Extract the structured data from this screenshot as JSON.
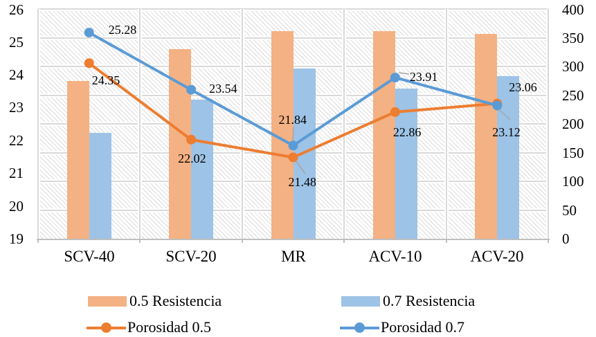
{
  "chart_data": {
    "type": "bar",
    "subtype": "combo-bar-line-dual-axis",
    "categories": [
      "SCV-40",
      "SCV-20",
      "MR",
      "ACV-10",
      "ACV-20"
    ],
    "bar_series": [
      {
        "name": "0.5 Resistencia",
        "axis": "right",
        "color": "#F4B183",
        "values": [
          275,
          330,
          362,
          361,
          357
        ]
      },
      {
        "name": "0.7 Resistencia",
        "axis": "right",
        "color": "#9DC3E6",
        "values": [
          184,
          242,
          296,
          261,
          283
        ]
      }
    ],
    "line_series": [
      {
        "name": "Porosidad 0.5",
        "axis": "left",
        "color": "#ED7D31",
        "values": [
          24.35,
          22.02,
          21.48,
          22.86,
          23.12
        ],
        "labels": [
          "24.35",
          "22.02",
          "21.48",
          "22.86",
          "23.12"
        ]
      },
      {
        "name": "Porosidad 0.7",
        "axis": "left",
        "color": "#5B9BD5",
        "values": [
          25.28,
          23.54,
          21.84,
          23.91,
          23.06
        ],
        "labels": [
          "25.28",
          "23.54",
          "21.84",
          "23.91",
          "23.06"
        ]
      }
    ],
    "left_axis": {
      "min": 19,
      "max": 26,
      "step": 1,
      "ticks": [
        "26",
        "25",
        "24",
        "23",
        "22",
        "21",
        "20",
        "19"
      ]
    },
    "right_axis": {
      "min": 0,
      "max": 400,
      "step": 50,
      "ticks": [
        "400",
        "350",
        "300",
        "250",
        "200",
        "150",
        "100",
        "50",
        "0"
      ]
    },
    "grid": true,
    "legend_position": "bottom",
    "legend": [
      {
        "type": "bar",
        "label": "0.5 Resistencia",
        "color": "#F4B183"
      },
      {
        "type": "bar",
        "label": "0.7 Resistencia",
        "color": "#9DC3E6"
      },
      {
        "type": "line",
        "label": "Porosidad 0.5",
        "color": "#ED7D31"
      },
      {
        "type": "line",
        "label": "Porosidad 0.7",
        "color": "#5B9BD5"
      }
    ]
  },
  "colors": {
    "gridline": "#D9D9D9",
    "axis_line": "#BFBFBF",
    "leader_line": "#A6A6A6",
    "hatch": "#DBDBDB",
    "text": "#000000",
    "background": "#FFFFFF"
  }
}
